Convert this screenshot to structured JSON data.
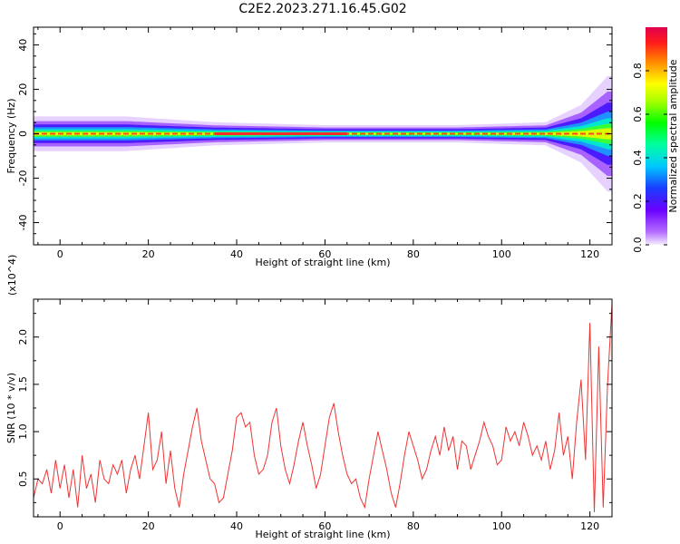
{
  "figure_title": "C2E2.2023.271.16.45.G02",
  "colorbar": {
    "label": "Normalized spectral amplitude",
    "ticks": [
      "0.0",
      "0.2",
      "0.4",
      "0.6",
      "0.8"
    ]
  },
  "chart_data": [
    {
      "type": "heatmap",
      "title": "",
      "xlabel": "Height of straight line (km)",
      "ylabel": "Frequency (Hz)",
      "xlim": [
        -6,
        125
      ],
      "ylim": [
        -50,
        48
      ],
      "x_ticks": [
        "0",
        "20",
        "40",
        "60",
        "80",
        "100",
        "120"
      ],
      "y_ticks": [
        "40",
        "20",
        "0",
        "-20",
        "-40"
      ],
      "z_range": [
        0.0,
        1.0
      ],
      "colormap": "rainbow (purple to red)",
      "band_center_hz": 0,
      "band_halfwidth_hz": [
        {
          "x": -6,
          "hz": 3
        },
        {
          "x": 15,
          "hz": 3
        },
        {
          "x": 35,
          "hz": 2
        },
        {
          "x": 60,
          "hz": 1.5
        },
        {
          "x": 90,
          "hz": 1.5
        },
        {
          "x": 110,
          "hz": 2
        },
        {
          "x": 118,
          "hz": 5
        },
        {
          "x": 124,
          "hz": 10
        }
      ]
    },
    {
      "type": "line",
      "title": "",
      "xlabel": "Height of straight line (km)",
      "ylabel": "SNR (10 * v/v)",
      "y_multiplier": "(x10^4)",
      "xlim": [
        -6,
        125
      ],
      "ylim": [
        0.1,
        2.4
      ],
      "x_ticks": [
        "0",
        "20",
        "40",
        "60",
        "80",
        "100",
        "120"
      ],
      "y_ticks": [
        "0.5",
        "1.0",
        "1.5",
        "2.0"
      ],
      "line_color": "#ee3333",
      "series": [
        {
          "x": [
            -6,
            -5,
            -4,
            -3,
            -2,
            -1,
            0,
            1,
            2,
            3,
            4,
            5,
            6,
            7,
            8,
            9,
            10,
            11,
            12,
            13,
            14,
            15,
            16,
            17,
            18,
            19,
            20,
            21,
            22,
            23,
            24,
            25,
            26,
            27,
            28,
            29,
            30,
            31,
            32,
            33,
            34,
            35,
            36,
            37,
            38,
            39,
            40,
            41,
            42,
            43,
            44,
            45,
            46,
            47,
            48,
            49,
            50,
            51,
            52,
            53,
            54,
            55,
            56,
            57,
            58,
            59,
            60,
            61,
            62,
            63,
            64,
            65,
            66,
            67,
            68,
            69,
            70,
            71,
            72,
            73,
            74,
            75,
            76,
            77,
            78,
            79,
            80,
            81,
            82,
            83,
            84,
            85,
            86,
            87,
            88,
            89,
            90,
            91,
            92,
            93,
            94,
            95,
            96,
            97,
            98,
            99,
            100,
            101,
            102,
            103,
            104,
            105,
            106,
            107,
            108,
            109,
            110,
            111,
            112,
            113,
            114,
            115,
            116,
            117,
            118,
            119,
            120,
            121,
            122,
            123,
            124,
            125
          ],
          "values": [
            0.3,
            0.5,
            0.45,
            0.6,
            0.35,
            0.7,
            0.4,
            0.65,
            0.3,
            0.6,
            0.2,
            0.75,
            0.4,
            0.55,
            0.25,
            0.7,
            0.5,
            0.45,
            0.65,
            0.55,
            0.7,
            0.35,
            0.6,
            0.75,
            0.5,
            0.85,
            1.2,
            0.6,
            0.7,
            1.0,
            0.45,
            0.8,
            0.4,
            0.2,
            0.55,
            0.8,
            1.05,
            1.25,
            0.9,
            0.7,
            0.5,
            0.45,
            0.25,
            0.3,
            0.55,
            0.8,
            1.15,
            1.2,
            1.05,
            1.1,
            0.75,
            0.55,
            0.6,
            0.75,
            1.1,
            1.25,
            0.85,
            0.6,
            0.45,
            0.65,
            0.9,
            1.1,
            0.85,
            0.65,
            0.4,
            0.55,
            0.85,
            1.15,
            1.3,
            1.0,
            0.75,
            0.55,
            0.45,
            0.5,
            0.3,
            0.2,
            0.5,
            0.75,
            1.0,
            0.8,
            0.6,
            0.35,
            0.2,
            0.45,
            0.75,
            1.0,
            0.85,
            0.7,
            0.5,
            0.6,
            0.8,
            0.95,
            0.75,
            1.05,
            0.8,
            0.95,
            0.6,
            0.9,
            0.85,
            0.6,
            0.75,
            0.9,
            1.1,
            0.95,
            0.85,
            0.65,
            0.7,
            1.05,
            0.9,
            1.0,
            0.85,
            1.1,
            0.95,
            0.75,
            0.85,
            0.7,
            0.9,
            0.6,
            0.8,
            1.2,
            0.75,
            0.95,
            0.5,
            1.1,
            1.55,
            0.7,
            2.15,
            0.15,
            1.9,
            0.2,
            1.5,
            2.35
          ],
          "note": ""
        }
      ]
    }
  ]
}
